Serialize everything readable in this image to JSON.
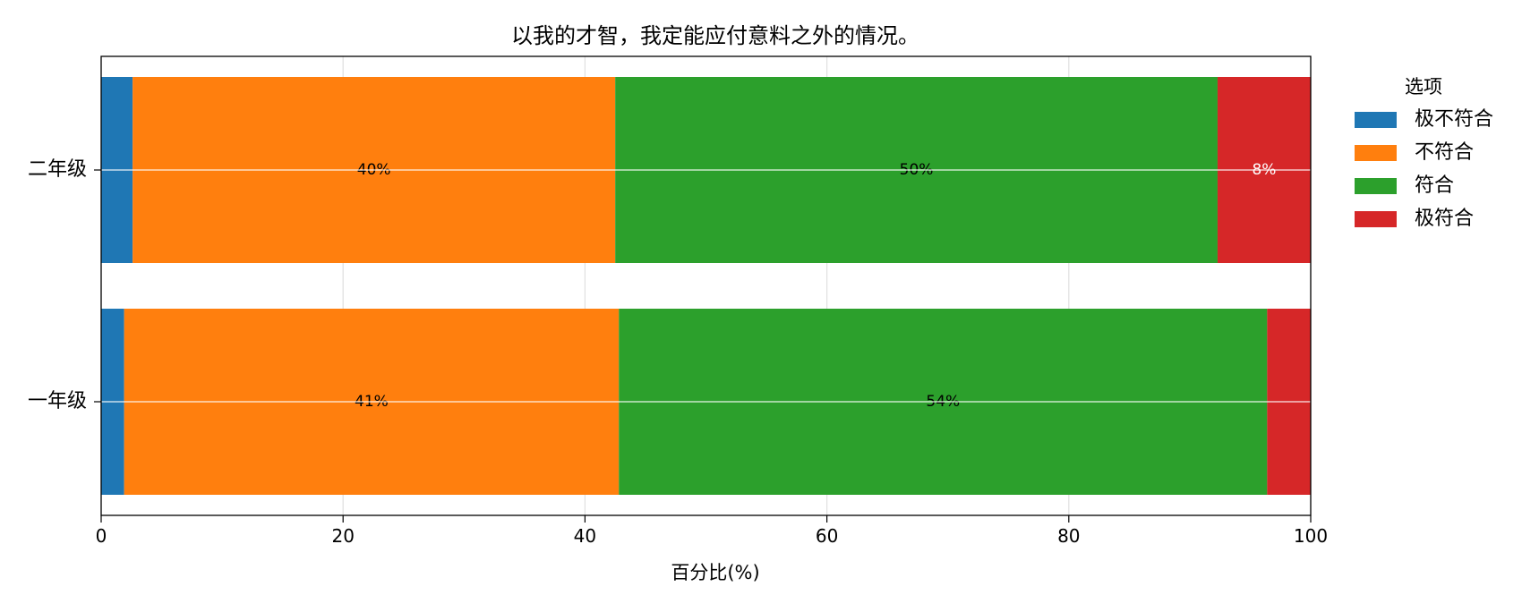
{
  "chart_data": {
    "type": "bar",
    "orientation": "horizontal",
    "stacked": true,
    "title": "以我的才智，我定能应付意料之外的情况。",
    "xlabel": "百分比(%)",
    "ylabel": "",
    "xlim": [
      0,
      100
    ],
    "xticks": [
      "0",
      "20",
      "40",
      "60",
      "80",
      "100"
    ],
    "grid": true,
    "legend_position": "right",
    "legend_title": "选项",
    "categories": [
      "二年级",
      "一年级"
    ],
    "series": [
      {
        "name": "极不符合",
        "color": "#1f77b4",
        "values": [
          2.6,
          1.9
        ],
        "labels": [
          "",
          ""
        ],
        "label_color": "#000000"
      },
      {
        "name": "不符合",
        "color": "#ff7f0e",
        "values": [
          39.9,
          40.9
        ],
        "labels": [
          "40%",
          "41%"
        ],
        "label_color": "#000000"
      },
      {
        "name": "符合",
        "color": "#2ca02c",
        "values": [
          49.8,
          53.6
        ],
        "labels": [
          "50%",
          "54%"
        ],
        "label_color": "#000000"
      },
      {
        "name": "极符合",
        "color": "#d62728",
        "values": [
          7.7,
          3.6
        ],
        "labels": [
          "8%",
          ""
        ],
        "label_color": "#ffffff"
      }
    ]
  }
}
